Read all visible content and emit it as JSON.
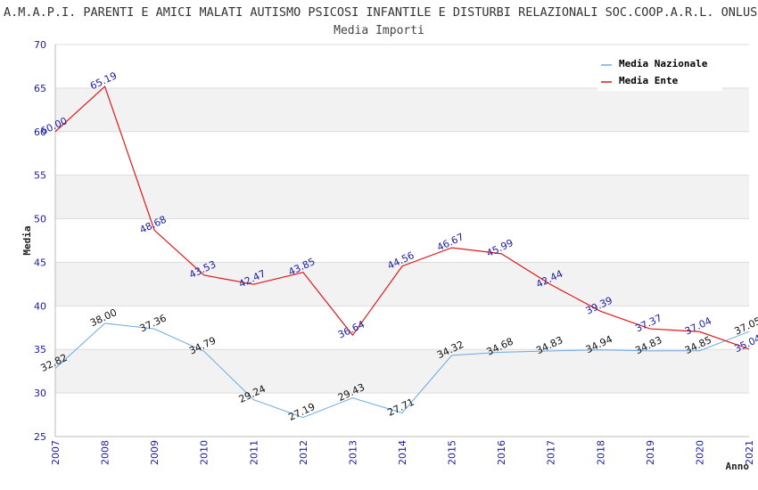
{
  "chart_data": {
    "type": "line",
    "title": "A.M.A.P.I. PARENTI E AMICI MALATI AUTISMO PSICOSI INFANTILE E DISTURBI RELAZIONALI SOC.COOP.A.R.L. ONLUS",
    "subtitle": "Media Importi",
    "xlabel": "Anno",
    "ylabel": "Media",
    "ylim": [
      25,
      70
    ],
    "yticks": [
      25,
      30,
      35,
      40,
      45,
      50,
      55,
      60,
      65,
      70
    ],
    "x": [
      "2007",
      "2008",
      "2009",
      "2010",
      "2011",
      "2012",
      "2013",
      "2014",
      "2015",
      "2016",
      "2017",
      "2018",
      "2019",
      "2020",
      "2021"
    ],
    "grid": true,
    "legend_position": "top-right",
    "series": [
      {
        "name": "Media Nazionale",
        "color": "#6aaae4",
        "values": [
          32.82,
          38.0,
          37.36,
          34.79,
          29.24,
          27.19,
          29.43,
          27.71,
          34.32,
          34.68,
          34.83,
          34.94,
          34.83,
          34.85,
          37.05
        ],
        "labels": [
          "32.82",
          "38.00",
          "37.36",
          "34.79",
          "29.24",
          "27.19",
          "29.43",
          "27.71",
          "34.32",
          "34.68",
          "34.83",
          "34.94",
          "34.83",
          "34.85",
          "37.05"
        ]
      },
      {
        "name": "Media Ente",
        "color": "#e0181b",
        "values": [
          60.0,
          65.19,
          48.68,
          43.53,
          42.47,
          43.85,
          36.64,
          44.56,
          46.67,
          45.99,
          42.44,
          39.39,
          37.37,
          37.04,
          35.04
        ],
        "labels": [
          "60.00",
          "65.19",
          "48.68",
          "43.53",
          "42.47",
          "43.85",
          "36.64",
          "44.56",
          "46.67",
          "45.99",
          "42.44",
          "39.39",
          "37.37",
          "37.04",
          "35.04"
        ]
      }
    ]
  }
}
